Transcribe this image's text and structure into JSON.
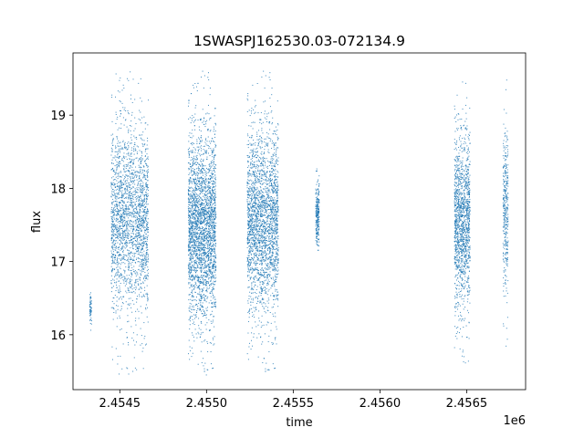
{
  "chart_data": {
    "type": "scatter",
    "title": "1SWASPJ162530.03-072134.9",
    "xlabel": "time",
    "ylabel": "flux",
    "x_offset_label": "1e6",
    "xlim": [
      2454230,
      2456840
    ],
    "ylim": [
      15.25,
      19.85
    ],
    "x_ticks": [
      2454500,
      2455000,
      2455500,
      2456000,
      2456500
    ],
    "x_tick_labels": [
      "2.4545",
      "2.4550",
      "2.4555",
      "2.4560",
      "2.4565"
    ],
    "y_ticks": [
      16,
      17,
      18,
      19
    ],
    "y_tick_labels": [
      "16",
      "17",
      "18",
      "19"
    ],
    "grid": false,
    "marker_color": "#1f77b4",
    "clusters": [
      {
        "x_start": 2454325,
        "x_end": 2454338,
        "y_center": 16.35,
        "y_min": 15.95,
        "y_max": 16.72,
        "points": 60
      },
      {
        "x_start": 2454450,
        "x_end": 2454665,
        "y_center": 17.55,
        "y_min": 15.45,
        "y_max": 19.6,
        "points": 2200
      },
      {
        "x_start": 2454895,
        "x_end": 2455055,
        "y_center": 17.45,
        "y_min": 15.45,
        "y_max": 19.65,
        "points": 2800
      },
      {
        "x_start": 2455235,
        "x_end": 2455415,
        "y_center": 17.55,
        "y_min": 15.45,
        "y_max": 19.65,
        "points": 2400
      },
      {
        "x_start": 2455630,
        "x_end": 2455650,
        "y_center": 17.6,
        "y_min": 17.0,
        "y_max": 18.35,
        "points": 250
      },
      {
        "x_start": 2456430,
        "x_end": 2456520,
        "y_center": 17.55,
        "y_min": 15.55,
        "y_max": 19.5,
        "points": 1400
      },
      {
        "x_start": 2456710,
        "x_end": 2456740,
        "y_center": 17.7,
        "y_min": 15.8,
        "y_max": 19.6,
        "points": 350
      }
    ]
  }
}
